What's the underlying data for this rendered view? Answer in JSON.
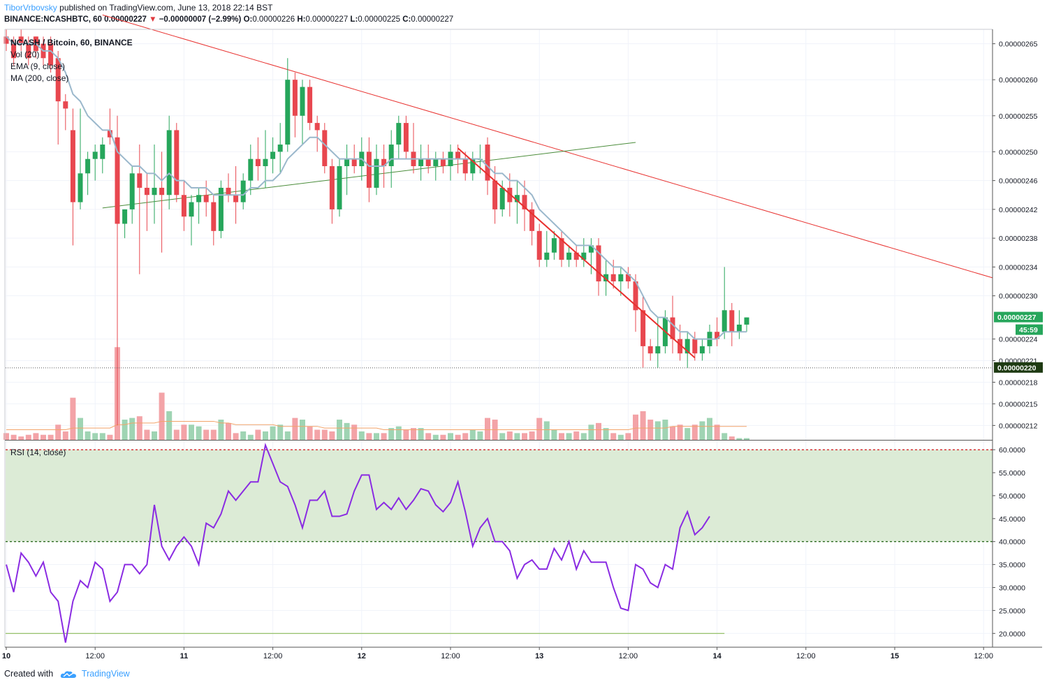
{
  "header": {
    "author": "TiborVrbovsky",
    "published_text": "published on TradingView.com, June 13, 2018 22:14 BST",
    "symbol_line": "BINANCE:NCASHBTC, 60",
    "last_price": "0.00000227",
    "change": "−0.00000007 (−2.99%)",
    "ohlc": {
      "O": "0.00000226",
      "H": "0.00000227",
      "L": "0.00000225",
      "C": "0.00000227"
    }
  },
  "legend": {
    "title": "NCASH / Bitcoin, 60, BINANCE",
    "items": [
      "Vol (20)",
      "EMA (9, close)",
      "MA (200, close)"
    ]
  },
  "rsi_legend": "RSI (14, close)",
  "price_axis": {
    "ticks": [
      "0.00000265",
      "0.00000260",
      "0.00000255",
      "0.00000250",
      "0.00000246",
      "0.00000242",
      "0.00000238",
      "0.00000234",
      "0.00000230",
      "0.00000224",
      "0.00000221",
      "0.00000218",
      "0.00000215",
      "0.00000212"
    ],
    "tick_values": [
      2.65,
      2.6,
      2.55,
      2.5,
      2.46,
      2.42,
      2.38,
      2.34,
      2.3,
      2.24,
      2.21,
      2.18,
      2.15,
      2.12
    ],
    "last_price_label": "0.00000227",
    "countdown_label": "45:59",
    "support_label": "0.00000220"
  },
  "rsi_axis": {
    "ticks": [
      "60.0000",
      "55.0000",
      "50.0000",
      "45.0000",
      "40.0000",
      "35.0000",
      "30.0000",
      "25.0000",
      "20.0000"
    ],
    "tick_values": [
      60,
      55,
      50,
      45,
      40,
      35,
      30,
      25,
      20
    ],
    "upper_band": 60,
    "lower_band": 40,
    "reference_level": 20
  },
  "time_axis": {
    "labels": [
      "10",
      "12:00",
      "11",
      "12:00",
      "12",
      "12:00",
      "13",
      "12:00",
      "14",
      "12:00",
      "15",
      "12:00"
    ],
    "label_bars": [
      0,
      12,
      24,
      36,
      48,
      60,
      72,
      84,
      96,
      108,
      120,
      132
    ]
  },
  "footer": {
    "created_with": "Created with",
    "brand": "TradingView"
  },
  "colors": {
    "up": "#26a65b",
    "down": "#e8474f",
    "up_vol": "#9fd4b3",
    "down_vol": "#f3a3a7",
    "ema": "#9bb8cc",
    "rsi": "#8a2be2",
    "band_fill": "#dcebd6",
    "band_line": "#d62728",
    "trend_red": "#e8312f",
    "trend_green": "#4a8c3a"
  },
  "chart_data": [
    {
      "type": "candlestick",
      "title": "NCASH / Bitcoin, 60, BINANCE",
      "ylim": [
        2.1,
        2.67
      ],
      "y_unit": "×1e-6 BTC",
      "ohlc": [
        [
          2.66,
          2.67,
          2.64,
          2.65
        ],
        [
          2.65,
          2.66,
          2.62,
          2.63
        ],
        [
          2.66,
          2.67,
          2.64,
          2.65
        ],
        [
          2.65,
          2.66,
          2.62,
          2.63
        ],
        [
          2.66,
          2.66,
          2.63,
          2.64
        ],
        [
          2.65,
          2.66,
          2.62,
          2.63
        ],
        [
          2.65,
          2.66,
          2.61,
          2.62
        ],
        [
          2.63,
          2.64,
          2.51,
          2.57
        ],
        [
          2.57,
          2.58,
          2.53,
          2.56
        ],
        [
          2.53,
          2.56,
          2.37,
          2.43
        ],
        [
          2.43,
          2.56,
          2.42,
          2.47
        ],
        [
          2.47,
          2.5,
          2.44,
          2.49
        ],
        [
          2.49,
          2.51,
          2.46,
          2.5
        ],
        [
          2.49,
          2.52,
          2.47,
          2.51
        ],
        [
          2.53,
          2.56,
          2.51,
          2.52
        ],
        [
          2.52,
          2.55,
          2.12,
          2.4
        ],
        [
          2.4,
          2.42,
          2.38,
          2.42
        ],
        [
          2.42,
          2.48,
          2.4,
          2.47
        ],
        [
          2.47,
          2.51,
          2.33,
          2.45
        ],
        [
          2.45,
          2.47,
          2.39,
          2.44
        ],
        [
          2.44,
          2.51,
          2.4,
          2.45
        ],
        [
          2.45,
          2.5,
          2.36,
          2.44
        ],
        [
          2.44,
          2.55,
          2.42,
          2.53
        ],
        [
          2.53,
          2.54,
          2.43,
          2.44
        ],
        [
          2.44,
          2.46,
          2.39,
          2.41
        ],
        [
          2.41,
          2.44,
          2.37,
          2.43
        ],
        [
          2.43,
          2.45,
          2.4,
          2.44
        ],
        [
          2.44,
          2.46,
          2.41,
          2.43
        ],
        [
          2.43,
          2.44,
          2.37,
          2.39
        ],
        [
          2.39,
          2.46,
          2.38,
          2.45
        ],
        [
          2.45,
          2.47,
          2.43,
          2.44
        ],
        [
          2.44,
          2.48,
          2.4,
          2.43
        ],
        [
          2.43,
          2.47,
          2.42,
          2.46
        ],
        [
          2.46,
          2.51,
          2.44,
          2.49
        ],
        [
          2.49,
          2.52,
          2.46,
          2.48
        ],
        [
          2.48,
          2.53,
          2.45,
          2.49
        ],
        [
          2.49,
          2.52,
          2.47,
          2.5
        ],
        [
          2.5,
          2.54,
          2.47,
          2.51
        ],
        [
          2.51,
          2.63,
          2.5,
          2.6
        ],
        [
          2.6,
          2.61,
          2.52,
          2.55
        ],
        [
          2.55,
          2.6,
          2.51,
          2.59
        ],
        [
          2.59,
          2.6,
          2.53,
          2.54
        ],
        [
          2.54,
          2.55,
          2.5,
          2.53
        ],
        [
          2.53,
          2.54,
          2.47,
          2.48
        ],
        [
          2.48,
          2.49,
          2.4,
          2.42
        ],
        [
          2.42,
          2.49,
          2.41,
          2.48
        ],
        [
          2.48,
          2.51,
          2.44,
          2.49
        ],
        [
          2.49,
          2.51,
          2.47,
          2.48
        ],
        [
          2.48,
          2.52,
          2.46,
          2.5
        ],
        [
          2.5,
          2.52,
          2.43,
          2.45
        ],
        [
          2.45,
          2.51,
          2.44,
          2.49
        ],
        [
          2.49,
          2.51,
          2.45,
          2.48
        ],
        [
          2.48,
          2.53,
          2.45,
          2.51
        ],
        [
          2.51,
          2.55,
          2.49,
          2.54
        ],
        [
          2.54,
          2.55,
          2.49,
          2.5
        ],
        [
          2.5,
          2.54,
          2.47,
          2.48
        ],
        [
          2.48,
          2.51,
          2.46,
          2.49
        ],
        [
          2.49,
          2.51,
          2.47,
          2.48
        ],
        [
          2.48,
          2.5,
          2.46,
          2.49
        ],
        [
          2.49,
          2.5,
          2.47,
          2.48
        ],
        [
          2.48,
          2.51,
          2.46,
          2.5
        ],
        [
          2.5,
          2.51,
          2.47,
          2.49
        ],
        [
          2.49,
          2.5,
          2.46,
          2.47
        ],
        [
          2.47,
          2.5,
          2.46,
          2.49
        ],
        [
          2.49,
          2.51,
          2.47,
          2.49
        ],
        [
          2.51,
          2.52,
          2.44,
          2.46
        ],
        [
          2.46,
          2.48,
          2.4,
          2.42
        ],
        [
          2.42,
          2.46,
          2.41,
          2.45
        ],
        [
          2.45,
          2.47,
          2.41,
          2.43
        ],
        [
          2.43,
          2.46,
          2.4,
          2.44
        ],
        [
          2.44,
          2.46,
          2.39,
          2.42
        ],
        [
          2.42,
          2.43,
          2.37,
          2.39
        ],
        [
          2.39,
          2.4,
          2.34,
          2.35
        ],
        [
          2.35,
          2.39,
          2.34,
          2.36
        ],
        [
          2.36,
          2.39,
          2.35,
          2.38
        ],
        [
          2.38,
          2.39,
          2.34,
          2.35
        ],
        [
          2.35,
          2.37,
          2.34,
          2.36
        ],
        [
          2.36,
          2.37,
          2.34,
          2.35
        ],
        [
          2.35,
          2.38,
          2.34,
          2.36
        ],
        [
          2.36,
          2.38,
          2.33,
          2.37
        ],
        [
          2.37,
          2.38,
          2.3,
          2.32
        ],
        [
          2.32,
          2.35,
          2.3,
          2.33
        ],
        [
          2.33,
          2.35,
          2.31,
          2.32
        ],
        [
          2.32,
          2.34,
          2.3,
          2.33
        ],
        [
          2.33,
          2.34,
          2.31,
          2.32
        ],
        [
          2.32,
          2.33,
          2.25,
          2.28
        ],
        [
          2.28,
          2.3,
          2.2,
          2.23
        ],
        [
          2.23,
          2.24,
          2.21,
          2.22
        ],
        [
          2.22,
          2.27,
          2.2,
          2.23
        ],
        [
          2.23,
          2.28,
          2.22,
          2.27
        ],
        [
          2.27,
          2.3,
          2.22,
          2.24
        ],
        [
          2.24,
          2.26,
          2.21,
          2.22
        ],
        [
          2.22,
          2.25,
          2.2,
          2.24
        ],
        [
          2.24,
          2.25,
          2.21,
          2.22
        ],
        [
          2.22,
          2.24,
          2.21,
          2.23
        ],
        [
          2.23,
          2.26,
          2.22,
          2.25
        ],
        [
          2.25,
          2.27,
          2.23,
          2.24
        ],
        [
          2.25,
          2.34,
          2.24,
          2.28
        ],
        [
          2.28,
          2.29,
          2.23,
          2.25
        ],
        [
          2.25,
          2.28,
          2.24,
          2.26
        ],
        [
          2.26,
          2.27,
          2.25,
          2.27
        ]
      ]
    },
    {
      "type": "line",
      "series": [
        {
          "name": "EMA (9, close)",
          "values": [
            2.66,
            2.65,
            2.65,
            2.65,
            2.65,
            2.64,
            2.64,
            2.63,
            2.61,
            2.58,
            2.57,
            2.55,
            2.54,
            2.53,
            2.53,
            2.5,
            2.49,
            2.48,
            2.48,
            2.47,
            2.47,
            2.46,
            2.47,
            2.46,
            2.46,
            2.45,
            2.45,
            2.45,
            2.44,
            2.44,
            2.44,
            2.44,
            2.44,
            2.45,
            2.45,
            2.46,
            2.46,
            2.47,
            2.49,
            2.5,
            2.51,
            2.52,
            2.52,
            2.51,
            2.5,
            2.49,
            2.49,
            2.49,
            2.49,
            2.48,
            2.48,
            2.48,
            2.49,
            2.49,
            2.49,
            2.49,
            2.49,
            2.49,
            2.49,
            2.49,
            2.49,
            2.49,
            2.49,
            2.49,
            2.49,
            2.48,
            2.47,
            2.47,
            2.46,
            2.46,
            2.45,
            2.44,
            2.42,
            2.41,
            2.4,
            2.39,
            2.38,
            2.37,
            2.37,
            2.37,
            2.36,
            2.35,
            2.34,
            2.34,
            2.33,
            2.32,
            2.3,
            2.28,
            2.27,
            2.27,
            2.26,
            2.25,
            2.25,
            2.24,
            2.24,
            2.24,
            2.24,
            2.25,
            2.25,
            2.25,
            2.25
          ]
        }
      ]
    },
    {
      "type": "bar",
      "series": [
        {
          "name": "Vol (20)",
          "values": [
            4,
            3,
            2,
            3,
            4,
            3,
            3,
            9,
            5,
            25,
            13,
            5,
            4,
            4,
            3,
            55,
            12,
            13,
            14,
            6,
            5,
            28,
            17,
            6,
            9,
            9,
            8,
            6,
            6,
            12,
            10,
            4,
            5,
            3,
            6,
            5,
            8,
            9,
            5,
            13,
            12,
            8,
            6,
            6,
            5,
            12,
            10,
            9,
            5,
            4,
            4,
            4,
            7,
            8,
            6,
            7,
            7,
            4,
            3,
            3,
            4,
            3,
            4,
            6,
            5,
            13,
            12,
            4,
            5,
            4,
            4,
            5,
            13,
            11,
            6,
            4,
            4,
            5,
            4,
            9,
            10,
            7,
            4,
            3,
            4,
            15,
            17,
            12,
            11,
            12,
            8,
            9,
            7,
            9,
            11,
            13,
            9,
            4,
            2,
            1,
            1
          ]
        },
        {
          "name": "MA",
          "values": [
            6,
            6,
            6,
            6,
            6,
            6,
            6,
            6,
            6,
            7,
            7,
            7,
            7,
            7,
            7,
            9,
            9,
            10,
            10,
            10,
            10,
            11,
            11,
            11,
            11,
            11,
            11,
            11,
            11,
            10,
            10,
            9,
            9,
            9,
            9,
            9,
            9,
            8,
            8,
            8,
            8,
            8,
            8,
            7,
            7,
            7,
            7,
            7,
            7,
            7,
            7,
            6,
            6,
            6,
            6,
            6,
            6,
            6,
            6,
            6,
            6,
            6,
            6,
            6,
            6,
            6,
            6,
            6,
            6,
            6,
            6,
            6,
            6,
            6,
            6,
            6,
            6,
            6,
            6,
            6,
            6,
            6,
            6,
            6,
            6,
            7,
            7,
            7,
            7,
            7,
            8,
            8,
            8,
            8,
            8,
            8,
            8,
            8,
            8,
            8,
            8
          ]
        }
      ]
    },
    {
      "type": "line",
      "title": "RSI (14, close)",
      "ylim": [
        17,
        62
      ],
      "series": [
        {
          "name": "RSI (14, close)",
          "values": [
            35,
            29,
            37.5,
            35.5,
            32.5,
            35.5,
            29,
            27,
            18,
            27,
            31.5,
            30,
            35.5,
            34,
            27,
            29,
            35,
            35,
            33,
            35,
            48,
            39,
            36,
            39,
            41,
            39,
            35,
            44,
            43,
            46,
            51,
            49,
            51,
            53,
            53,
            61,
            57,
            53,
            52,
            48,
            43,
            49,
            49,
            51,
            45.5,
            45.5,
            46,
            51,
            54.5,
            54.5,
            47,
            48.5,
            47,
            49.5,
            47,
            49,
            51.5,
            51,
            48,
            46.5,
            48.5,
            53,
            46.5,
            39,
            43,
            45,
            40,
            40,
            38,
            32,
            35,
            36,
            34,
            34,
            38.5,
            36,
            40,
            34,
            38,
            35.5,
            35.5,
            35.5,
            30,
            25.5,
            25,
            35,
            34,
            31,
            30,
            35,
            34,
            43,
            46.5,
            41.5,
            43,
            45.5
          ]
        }
      ]
    }
  ]
}
